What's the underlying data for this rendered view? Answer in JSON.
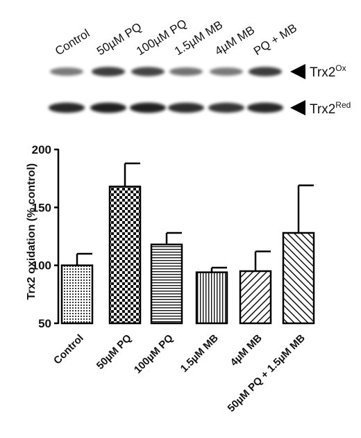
{
  "blot": {
    "lanes": [
      "Control",
      "50µM PQ",
      "100µM PQ",
      "1.5µM MB",
      "4µM MB",
      "PQ + MB"
    ],
    "bands": [
      {
        "base": "Trx2",
        "sup": "Ox"
      },
      {
        "base": "Trx2",
        "sup": "Red"
      }
    ]
  },
  "chart_data": {
    "type": "bar",
    "categories": [
      "Control",
      "50µM PQ",
      "100µM PQ",
      "1.5µM MB",
      "4µM MB",
      "50µM PQ + 1.5µM MB"
    ],
    "values": [
      100,
      168,
      118,
      94,
      95,
      128
    ],
    "errors": [
      10,
      20,
      10,
      4,
      17,
      41
    ],
    "patterns": [
      "dots",
      "checker",
      "horizontal-lines",
      "vertical-lines",
      "diagonal-lines",
      "diagonal-lines-back"
    ],
    "ylabel": "Trx2 oxidation (% control)",
    "yticks": [
      50,
      100,
      150,
      200
    ],
    "ylim": [
      50,
      200
    ]
  }
}
